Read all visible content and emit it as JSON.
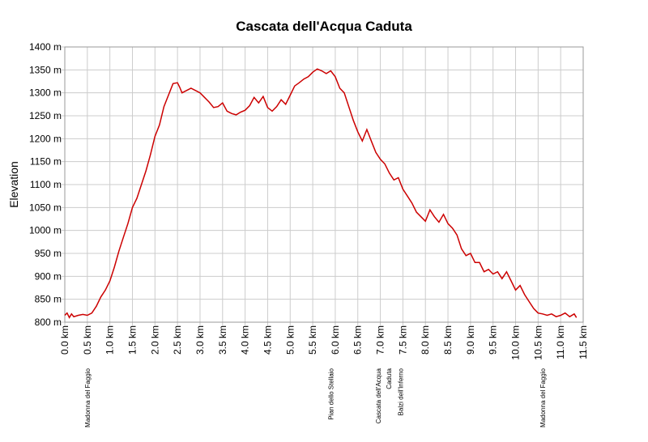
{
  "chart_data": {
    "type": "line",
    "title": "Cascata dell'Acqua Caduta",
    "xlabel": "",
    "ylabel": "Elevation",
    "xlim": [
      0,
      11.5
    ],
    "ylim": [
      800,
      1400
    ],
    "grid": true,
    "line_color": "#cc0000",
    "x_ticks": [
      "0.0 km",
      "0.5 km",
      "1.0 km",
      "1.5 km",
      "2.0 km",
      "2.5 km",
      "3.0 km",
      "3.5 km",
      "4.0 km",
      "4.5 km",
      "5.0 km",
      "5.5 km",
      "6.0 km",
      "6.5 km",
      "7.0 km",
      "7.5 km",
      "8.0 km",
      "8.5 km",
      "9.0 km",
      "9.5 km",
      "10.0 km",
      "10.5 km",
      "11.0 km",
      "11.5 km"
    ],
    "y_ticks": [
      "800 m",
      "850 m",
      "900 m",
      "950 m",
      "1000 m",
      "1050 m",
      "1100 m",
      "1150 m",
      "1200 m",
      "1250 m",
      "1300 m",
      "1350 m",
      "1400 m"
    ],
    "waypoints": [
      {
        "x": 0.5,
        "lines": [
          "Madonna del Faggio"
        ]
      },
      {
        "x": 5.9,
        "lines": [
          "Pian dello Stellaio"
        ]
      },
      {
        "x": 6.95,
        "lines": [
          "Cascata dell'Acqua",
          "Caduta"
        ]
      },
      {
        "x": 7.45,
        "lines": [
          "Balzi dell'Inferno"
        ]
      },
      {
        "x": 10.6,
        "lines": [
          "Madonna del Faggio"
        ]
      }
    ],
    "series": [
      {
        "x": [
          0,
          0.05,
          0.1,
          0.15,
          0.2,
          0.3,
          0.4,
          0.5,
          0.6,
          0.7,
          0.8,
          0.9,
          1.0,
          1.1,
          1.2,
          1.3,
          1.4,
          1.5,
          1.6,
          1.7,
          1.8,
          1.9,
          2.0,
          2.1,
          2.2,
          2.3,
          2.4,
          2.5,
          2.55,
          2.6,
          2.7,
          2.8,
          2.9,
          3.0,
          3.1,
          3.2,
          3.3,
          3.4,
          3.5,
          3.6,
          3.7,
          3.8,
          3.9,
          4.0,
          4.1,
          4.2,
          4.3,
          4.4,
          4.5,
          4.6,
          4.7,
          4.8,
          4.9,
          5.0,
          5.1,
          5.2,
          5.3,
          5.4,
          5.5,
          5.6,
          5.7,
          5.8,
          5.9,
          6.0,
          6.1,
          6.2,
          6.3,
          6.4,
          6.5,
          6.6,
          6.7,
          6.8,
          6.9,
          7.0,
          7.1,
          7.2,
          7.3,
          7.4,
          7.5,
          7.6,
          7.7,
          7.8,
          7.9,
          8.0,
          8.1,
          8.2,
          8.3,
          8.4,
          8.5,
          8.6,
          8.7,
          8.8,
          8.9,
          9.0,
          9.1,
          9.2,
          9.3,
          9.4,
          9.5,
          9.6,
          9.7,
          9.8,
          9.9,
          10.0,
          10.1,
          10.2,
          10.3,
          10.4,
          10.5,
          10.6,
          10.7,
          10.8,
          10.9,
          11.0,
          11.1,
          11.2,
          11.3,
          11.35
        ],
        "y": [
          815,
          820,
          810,
          818,
          812,
          815,
          817,
          815,
          820,
          835,
          855,
          870,
          890,
          920,
          955,
          985,
          1015,
          1050,
          1070,
          1100,
          1130,
          1165,
          1205,
          1230,
          1270,
          1295,
          1320,
          1322,
          1312,
          1300,
          1305,
          1310,
          1305,
          1300,
          1290,
          1280,
          1268,
          1270,
          1278,
          1260,
          1255,
          1252,
          1258,
          1262,
          1272,
          1290,
          1278,
          1292,
          1268,
          1260,
          1270,
          1285,
          1275,
          1295,
          1315,
          1322,
          1330,
          1335,
          1345,
          1352,
          1348,
          1342,
          1348,
          1335,
          1310,
          1300,
          1270,
          1240,
          1215,
          1195,
          1220,
          1195,
          1170,
          1155,
          1145,
          1125,
          1110,
          1115,
          1090,
          1075,
          1060,
          1040,
          1030,
          1020,
          1045,
          1030,
          1018,
          1035,
          1015,
          1005,
          990,
          960,
          945,
          950,
          930,
          930,
          910,
          915,
          905,
          910,
          895,
          910,
          890,
          870,
          880,
          860,
          845,
          830,
          820,
          818,
          815,
          818,
          812,
          815,
          820,
          812,
          818,
          810
        ]
      }
    ]
  }
}
